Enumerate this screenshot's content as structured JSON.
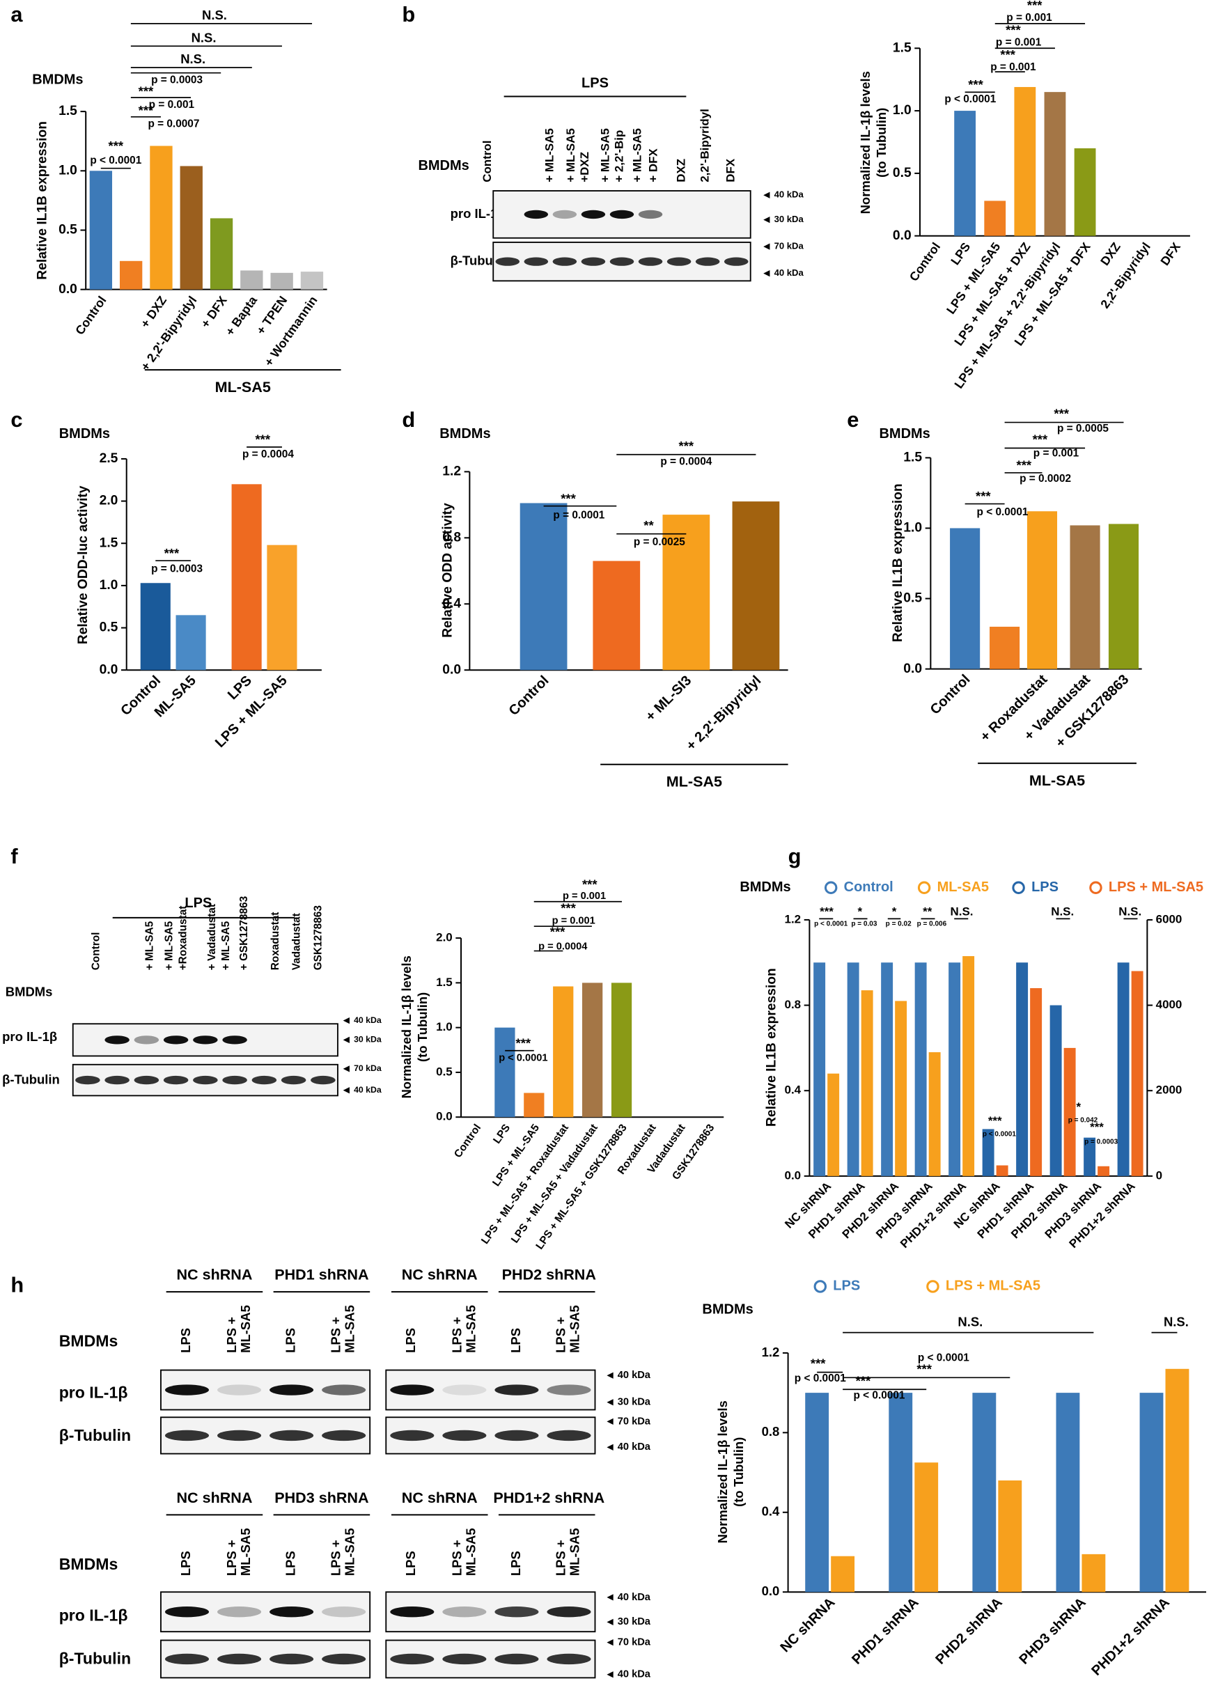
{
  "panels": [
    "a",
    "b",
    "c",
    "d",
    "e",
    "f",
    "g",
    "h"
  ],
  "blots": {
    "b": {
      "cell": "BMDMs",
      "header": "LPS",
      "lanes": [
        "Control",
        "+ ML-SA5",
        "+ ML-SA5",
        "+DXZ",
        "+ ML-SA5",
        "+ 2,2'-Bip",
        "+ ML-SA5",
        "+ DFX",
        "DXZ",
        "2,2'-Bipyridyl",
        "DFX"
      ],
      "rows": [
        "pro IL-1β",
        "β-Tubulin"
      ],
      "markers": [
        "40 kDa",
        "30 kDa",
        "70 kDa",
        "40 kDa"
      ]
    },
    "f": {
      "cell": "BMDMs",
      "header": "LPS",
      "lanes": [
        "Control",
        "+ ML-SA5",
        "+ ML-SA5",
        "+Roxadustat",
        "+ Vadadustat",
        "+ ML-SA5",
        "+ GSK1278863",
        "Roxadustat",
        "Vadadustat",
        "GSK1278863"
      ],
      "rows": [
        "pro IL-1β",
        "β-Tubulin"
      ],
      "markers": [
        "40 kDa",
        "30 kDa",
        "70 kDa",
        "40 kDa"
      ]
    },
    "h": [
      {
        "groups": [
          "NC shRNA",
          "PHD1 shRNA",
          "NC shRNA",
          "PHD2 shRNA"
        ],
        "cell": "BMDMs",
        "lanes": [
          "LPS",
          "LPS +",
          "ML-SA5",
          "LPS",
          "LPS +",
          "ML-SA5",
          "LPS",
          "LPS +",
          "ML-SA5",
          "LPS",
          "LPS +",
          "ML-SA5"
        ],
        "rows": [
          "pro IL-1β",
          "β-Tubulin"
        ],
        "markers": [
          "40 kDa",
          "30 kDa",
          "70 kDa",
          "40 kDa"
        ]
      },
      {
        "groups": [
          "NC shRNA",
          "PHD3 shRNA",
          "NC shRNA",
          "PHD1+2 shRNA"
        ],
        "cell": "BMDMs",
        "lanes": [
          "LPS",
          "LPS +",
          "ML-SA5",
          "LPS",
          "LPS +",
          "ML-SA5",
          "LPS",
          "LPS +",
          "ML-SA5",
          "LPS",
          "LPS +",
          "ML-SA5"
        ],
        "rows": [
          "pro IL-1β",
          "β-Tubulin"
        ],
        "markers": [
          "40 kDa",
          "30 kDa",
          "70 kDa",
          "40 kDa"
        ]
      }
    ]
  },
  "chart_data": [
    {
      "type": "bar",
      "title": "BMDMs",
      "ylabel": "Relative IL1B expression",
      "categories": [
        "Control",
        null,
        "+ DXZ",
        "+ 2,2'-Bipyridyl",
        "+ DFX",
        "+ Bapta",
        "+ TPEN",
        "+ Wortmannin"
      ],
      "values": [
        1.0,
        0.24,
        1.21,
        1.04,
        0.6,
        0.16,
        0.14,
        0.15
      ],
      "colors": [
        "#3d7ab8",
        "#f07f22",
        "#f7a01d",
        "#9b5f1e",
        "#7f9a1f",
        "#b5b5b5",
        "#b5b5b5",
        "#c4c4c4"
      ],
      "ylim": [
        0,
        1.5
      ],
      "yticks": [
        {
          "value": 0,
          "label": "0.0"
        },
        0.5,
        {
          "value": 1,
          "label": "1.0"
        },
        1.5
      ],
      "group_label": "ML-SA5",
      "annotations": [
        "***",
        "p < 0.0001",
        "p = 0.0003",
        "***",
        "p = 0.001",
        "***",
        "p = 0.0007",
        "N.S.",
        "N.S.",
        "N.S."
      ]
    },
    {
      "type": "bar",
      "ylabel": [
        "Normalized IL-1β levels",
        "(to Tubulin)"
      ],
      "categories": [
        "Control",
        "LPS",
        "LPS + ML-SA5",
        "LPS + ML-SA5 + DXZ",
        "LPS + ML-SA5 + 2,2'-Bipyridyl",
        "LPS + ML-SA5 + DFX",
        "DXZ",
        "2,2'-Bipyridyl",
        "DFX"
      ],
      "values": [
        0,
        1.0,
        0.28,
        1.19,
        1.15,
        0.7,
        0,
        0,
        0
      ],
      "colors": [
        "#3d7ab8",
        "#3d7ab8",
        "#f07f22",
        "#f7a01d",
        "#a47646",
        "#8a9a16",
        "#3d7ab8",
        "#3d7ab8",
        "#3d7ab8"
      ],
      "ylim": [
        0,
        1.5
      ],
      "yticks": [
        {
          "value": 0,
          "label": "0.0"
        },
        0.5,
        {
          "value": 1,
          "label": "1.0"
        },
        1.5
      ],
      "annotations": [
        "***",
        "p = 0.001",
        "***",
        "p = 0.001",
        "***",
        "p = 0.001",
        "***",
        "p < 0.0001"
      ]
    },
    {
      "type": "bar",
      "title": "BMDMs",
      "ylabel": "Relative ODD-luc activity",
      "categories": [
        "Control",
        "ML-SA5",
        "LPS",
        "LPS + ML-SA5"
      ],
      "values": [
        1.03,
        0.65,
        2.2,
        1.48
      ],
      "colors": [
        "#1a5a9a",
        "#4a8ac6",
        "#ee6a20",
        "#f9a22a"
      ],
      "ylim": [
        0,
        2.5
      ],
      "yticks": [
        {
          "value": 0,
          "label": "0.0"
        },
        0.5,
        {
          "value": 1,
          "label": "1.0"
        },
        1.5,
        {
          "value": 2,
          "label": "2.0"
        },
        2.5
      ],
      "annotations": [
        "***",
        "p = 0.0003",
        "***",
        "p = 0.0004"
      ]
    },
    {
      "type": "bar",
      "title": "BMDMs",
      "ylabel": "Relative ODD activity",
      "categories": [
        "Control",
        null,
        "+ ML-SI3",
        "+ 2,2'-Bipyridyl"
      ],
      "values": [
        1.01,
        0.66,
        0.94,
        1.02
      ],
      "colors": [
        "#3d7ab8",
        "#ee6a20",
        "#f7a01d",
        "#a2620f"
      ],
      "ylim": [
        0,
        1.2
      ],
      "yticks": [
        {
          "value": 0,
          "label": "0.0"
        },
        0.4,
        0.8,
        1.2
      ],
      "group_label": "ML-SA5",
      "annotations": [
        "***",
        "p = 0.0001",
        "**",
        "p = 0.0025",
        "***",
        "p = 0.0004"
      ]
    },
    {
      "type": "bar",
      "title": "BMDMs",
      "ylabel": "Relative IL1B expression",
      "categories": [
        "Control",
        null,
        "+ Roxadustat",
        "+ Vadadustat",
        "+ GSK1278863"
      ],
      "values": [
        1.0,
        0.3,
        1.12,
        1.02,
        1.03
      ],
      "colors": [
        "#3d7ab8",
        "#f07f22",
        "#f7a01d",
        "#a47646",
        "#8a9a16"
      ],
      "ylim": [
        0,
        1.5
      ],
      "yticks": [
        {
          "value": 0,
          "label": "0.0"
        },
        0.5,
        {
          "value": 1,
          "label": "1.0"
        },
        1.5
      ],
      "group_label": "ML-SA5",
      "annotations": [
        "***",
        "p < 0.0001",
        "***",
        "p = 0.0002",
        "***",
        "p = 0.001",
        "***",
        "p = 0.0005"
      ]
    },
    {
      "type": "bar",
      "ylabel": [
        "Normalized IL-1β levels",
        "(to Tubulin)"
      ],
      "categories": [
        "Control",
        "LPS",
        "LPS + ML-SA5",
        "LPS + ML-SA5 + Roxadustat",
        "LPS + ML-SA5 + Vadadustat",
        "LPS + ML-SA5 + GSK1278863",
        "Roxadustat",
        "Vadadustat",
        "GSK1278863"
      ],
      "values": [
        0,
        1.0,
        0.27,
        1.46,
        1.5,
        1.5,
        0,
        0,
        0
      ],
      "colors": [
        "#3d7ab8",
        "#3d7ab8",
        "#f07f22",
        "#f7a01d",
        "#a47646",
        "#8a9a16",
        "#3d7ab8",
        "#3d7ab8",
        "#3d7ab8"
      ],
      "ylim": [
        0,
        2
      ],
      "yticks": [
        {
          "value": 0,
          "label": "0.0"
        },
        0.5,
        {
          "value": 1,
          "label": "1.0"
        },
        1.5,
        {
          "value": 2,
          "label": "2.0"
        }
      ],
      "annotations": [
        "***",
        "p = 0.001",
        "***",
        "p = 0.001",
        "***",
        "p = 0.0004",
        "***",
        "p < 0.0001"
      ]
    },
    {
      "type": "bar",
      "title": "BMDMs",
      "ylabel": "Relative IL1B expression",
      "categories": [
        "NC shRNA",
        "PHD1 shRNA",
        "PHD2 shRNA",
        "PHD3 shRNA",
        "PHD1+2 shRNA",
        "NC shRNA",
        "PHD1 shRNA",
        "PHD2 shRNA",
        "PHD3 shRNA",
        "PHD1+2 shRNA"
      ],
      "series": [
        {
          "name": "Control",
          "color": "#3d7ab8",
          "values": [
            1,
            1,
            1,
            1,
            1,
            null,
            null,
            null,
            null,
            null
          ]
        },
        {
          "name": "ML-SA5",
          "color": "#f7a01d",
          "values": [
            0.48,
            0.87,
            0.82,
            0.58,
            1.03,
            null,
            null,
            null,
            null,
            null
          ]
        },
        {
          "name": "LPS",
          "color": "#2666a8",
          "axis": "y2",
          "values": [
            null,
            null,
            null,
            null,
            null,
            1100,
            5000,
            4000,
            900,
            5000
          ]
        },
        {
          "name": "LPS + ML-SA5",
          "color": "#ee6a20",
          "axis": "y2",
          "values": [
            null,
            null,
            null,
            null,
            null,
            250,
            4400,
            3000,
            230,
            4800
          ]
        }
      ],
      "ylim": [
        0,
        1.2
      ],
      "yticks": [
        {
          "value": 0,
          "label": "0.0"
        },
        0.4,
        0.8,
        1.2
      ],
      "y2lim": [
        0,
        6000
      ],
      "y2ticks": [
        0,
        2000,
        4000,
        6000
      ],
      "annotations": [
        "***",
        "p < 0.0001",
        "*",
        "p = 0.03",
        "*",
        "p = 0.02",
        "**",
        "p = 0.006",
        "N.S.",
        "***",
        "p < 0.0001",
        "N.S.",
        "*",
        "p = 0.042",
        "***",
        "p = 0.0003",
        "N.S."
      ]
    },
    {
      "type": "bar",
      "title": "BMDMs",
      "ylabel": [
        "Normalized IL-1β levels",
        "(to Tubulin)"
      ],
      "categories": [
        "NC shRNA",
        "PHD1 shRNA",
        "PHD2 shRNA",
        "PHD3 shRNA",
        "PHD1+2 shRNA"
      ],
      "series": [
        {
          "name": "LPS",
          "color": "#3d7ab8",
          "values": [
            1,
            1,
            1,
            1,
            1
          ]
        },
        {
          "name": "LPS + ML-SA5",
          "color": "#f7a01d",
          "values": [
            0.18,
            0.65,
            0.56,
            0.19,
            1.12
          ]
        }
      ],
      "ylim": [
        0,
        1.2
      ],
      "yticks": [
        {
          "value": 0,
          "label": "0.0"
        },
        0.4,
        0.8,
        1.2
      ],
      "annotations": [
        "N.S.",
        "***",
        "p < 0.0001",
        "***",
        "p < 0.0001",
        "***",
        "p < 0.0001",
        "N.S."
      ]
    }
  ]
}
